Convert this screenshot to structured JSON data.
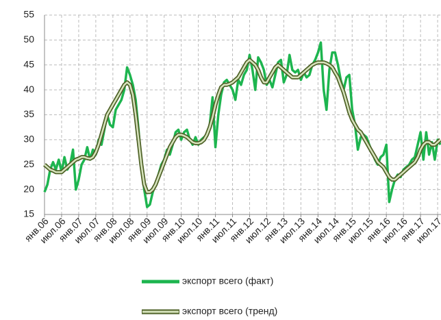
{
  "chart_data": {
    "type": "line",
    "categories": [
      "янв.06",
      null,
      null,
      null,
      null,
      null,
      "июл.06",
      null,
      null,
      null,
      null,
      null,
      "янв.07",
      null,
      null,
      null,
      null,
      null,
      "июл.07",
      null,
      null,
      null,
      null,
      null,
      "янв.08",
      null,
      null,
      null,
      null,
      null,
      "июл.08",
      null,
      null,
      null,
      null,
      null,
      "янв.09",
      null,
      null,
      null,
      null,
      null,
      "июл.09",
      null,
      null,
      null,
      null,
      null,
      "янв.10",
      null,
      null,
      null,
      null,
      null,
      "июл.10",
      null,
      null,
      null,
      null,
      null,
      "янв.11",
      null,
      null,
      null,
      null,
      null,
      "июл.11",
      null,
      null,
      null,
      null,
      null,
      "янв.12",
      null,
      null,
      null,
      null,
      null,
      "июл.12",
      null,
      null,
      null,
      null,
      null,
      "янв.13",
      null,
      null,
      null,
      null,
      null,
      "июл.13",
      null,
      null,
      null,
      null,
      null,
      "янв.14",
      null,
      null,
      null,
      null,
      null,
      "июл.14",
      null,
      null,
      null,
      null,
      null,
      "янв.15",
      null,
      null,
      null,
      null,
      null,
      "июл.15",
      null,
      null,
      null,
      null,
      null,
      "янв.16",
      null,
      null,
      null,
      null,
      null,
      "июл.16",
      null,
      null,
      null,
      null,
      null,
      "янв.17",
      null,
      null,
      null,
      null,
      null,
      "июл.17",
      null
    ],
    "series": [
      {
        "name": "экспорт всего (факт)",
        "color": "#1db54f",
        "values": [
          19.5,
          21,
          24,
          25.5,
          24,
          26,
          23.5,
          26.5,
          24,
          25,
          28,
          20,
          22,
          25,
          26,
          28.5,
          26,
          28,
          27,
          30,
          29,
          32,
          35,
          33,
          32.5,
          36,
          37,
          38,
          40,
          44.5,
          43,
          41,
          38,
          32,
          25,
          20,
          16.5,
          17,
          19.5,
          21,
          23,
          25,
          26,
          28,
          27,
          29,
          31.5,
          32,
          30,
          31.5,
          32,
          30,
          29,
          30.5,
          29,
          30,
          30.5,
          31,
          33,
          38.5,
          28.5,
          35,
          39,
          41.5,
          42,
          41,
          40,
          38,
          42,
          41,
          43,
          44,
          47,
          44,
          40,
          46.5,
          45.5,
          44,
          41,
          42,
          40.5,
          43,
          45.5,
          46,
          41.5,
          43,
          47,
          44,
          43.5,
          44,
          42,
          43.5,
          42.5,
          43,
          45,
          46,
          47.5,
          49.5,
          40,
          36,
          44,
          47.5,
          47.5,
          45,
          42,
          40,
          42.5,
          43,
          36,
          33,
          28,
          30.5,
          31,
          30.5,
          29,
          27.5,
          26,
          25,
          26.5,
          27,
          29,
          17.5,
          20,
          22,
          23,
          22.5,
          24,
          24.5,
          25,
          26,
          26.5,
          29,
          31.5,
          26,
          31.5,
          27,
          29.5,
          26,
          30,
          29
        ]
      },
      {
        "name": "экспорт всего (тренд)",
        "color": "#4f6228",
        "fill": "#d7e4bd",
        "values": [
          25,
          24.5,
          24,
          23.8,
          23.5,
          23.5,
          23.5,
          24,
          24.5,
          25,
          25.5,
          26,
          26.2,
          26.5,
          26.5,
          26.3,
          26.2,
          26.5,
          27.5,
          29,
          31,
          33,
          35,
          36,
          37,
          38,
          39,
          40,
          41,
          41.5,
          41,
          39,
          35,
          30,
          25,
          21,
          19.5,
          19.5,
          20,
          21,
          22.5,
          24,
          25.5,
          27,
          28.5,
          29.5,
          30.5,
          31,
          31,
          30.8,
          30.5,
          30,
          29.5,
          29.3,
          29.3,
          29.5,
          30,
          31,
          32.5,
          34.5,
          37,
          39,
          40.5,
          41,
          41,
          41.2,
          41.5,
          42,
          42.5,
          43.5,
          44.5,
          45.5,
          46,
          45.5,
          45,
          44,
          42.5,
          41.5,
          41.5,
          42.5,
          43.5,
          44.5,
          45,
          44.5,
          44,
          43.5,
          43,
          42.5,
          42.5,
          42.5,
          43,
          43.5,
          44,
          44.5,
          45,
          45.3,
          45.5,
          45.5,
          45.5,
          45.3,
          45,
          44.5,
          43.5,
          42.5,
          41,
          39.5,
          37.5,
          35.5,
          34,
          33,
          32,
          31.5,
          30.5,
          29.5,
          28.5,
          27.5,
          26.5,
          25.5,
          25,
          24.5,
          23.5,
          22.5,
          22,
          22,
          22.5,
          23,
          23.5,
          24,
          24.5,
          25,
          25.5,
          26.5,
          28,
          29,
          29.5,
          29.5,
          29,
          29,
          29.5,
          30
        ]
      }
    ],
    "ylim": [
      15,
      55
    ],
    "yticks": [
      15,
      20,
      25,
      30,
      35,
      40,
      45,
      50,
      55
    ],
    "grid": true,
    "legend": "bottom"
  }
}
